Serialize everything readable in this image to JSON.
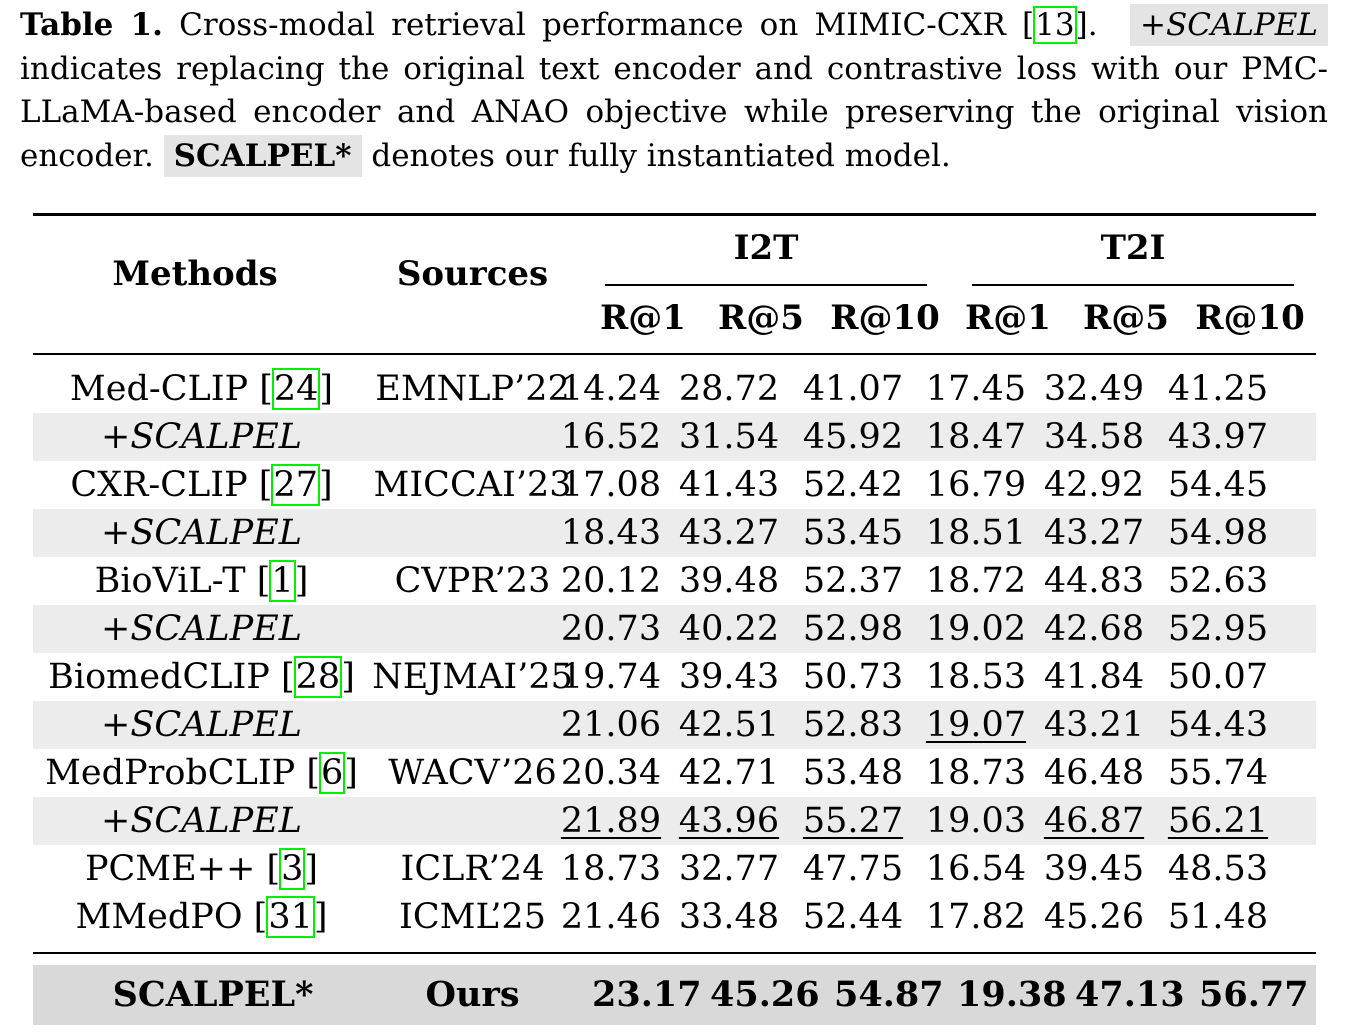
{
  "caption": {
    "label": "Table 1.",
    "text1": " Cross-modal retrieval performance on MIMIC-CXR [",
    "cite": "13",
    "text2": "].",
    "highlight1": "+SCALPEL",
    "text3": " indicates replacing the original text encoder and contrastive loss with our PMC-LLaMA-based encoder and ANAO objective while preserving the original vision encoder.",
    "highlight2": "SCALPEL*",
    "text4": " denotes our fully instantiated model."
  },
  "headers": {
    "methods": "Methods",
    "sources": "Sources",
    "group_i2t": "I2T",
    "group_t2i": "T2I",
    "metrics": [
      "R@1",
      "R@5",
      "R@10",
      "R@1",
      "R@5",
      "R@10"
    ]
  },
  "rows": [
    {
      "method": "Med-CLIP [",
      "ref": "24",
      "close": "]",
      "source": "EMNLP’22",
      "values": [
        "14.24",
        "28.72",
        "41.07",
        "17.45",
        "32.49",
        "41.25"
      ],
      "underline": [],
      "shade": false,
      "italic": false
    },
    {
      "method": "+SCALPEL",
      "ref": "",
      "close": "",
      "source": "",
      "values": [
        "16.52",
        "31.54",
        "45.92",
        "18.47",
        "34.58",
        "43.97"
      ],
      "underline": [],
      "shade": true,
      "italic": true
    },
    {
      "method": "CXR-CLIP [",
      "ref": "27",
      "close": "]",
      "source": "MICCAI’23",
      "values": [
        "17.08",
        "41.43",
        "52.42",
        "16.79",
        "42.92",
        "54.45"
      ],
      "underline": [],
      "shade": false,
      "italic": false
    },
    {
      "method": "+SCALPEL",
      "ref": "",
      "close": "",
      "source": "",
      "values": [
        "18.43",
        "43.27",
        "53.45",
        "18.51",
        "43.27",
        "54.98"
      ],
      "underline": [],
      "shade": true,
      "italic": true
    },
    {
      "method": "BioViL-T [",
      "ref": "1",
      "close": "]",
      "source": "CVPR’23",
      "values": [
        "20.12",
        "39.48",
        "52.37",
        "18.72",
        "44.83",
        "52.63"
      ],
      "underline": [],
      "shade": false,
      "italic": false
    },
    {
      "method": "+SCALPEL",
      "ref": "",
      "close": "",
      "source": "",
      "values": [
        "20.73",
        "40.22",
        "52.98",
        "19.02",
        "42.68",
        "52.95"
      ],
      "underline": [],
      "shade": true,
      "italic": true
    },
    {
      "method": "BiomedCLIP [",
      "ref": "28",
      "close": "]",
      "source": "NEJMAI’25",
      "values": [
        "19.74",
        "39.43",
        "50.73",
        "18.53",
        "41.84",
        "50.07"
      ],
      "underline": [],
      "shade": false,
      "italic": false
    },
    {
      "method": "+SCALPEL",
      "ref": "",
      "close": "",
      "source": "",
      "values": [
        "21.06",
        "42.51",
        "52.83",
        "19.07",
        "43.21",
        "54.43"
      ],
      "underline": [
        3
      ],
      "shade": true,
      "italic": true
    },
    {
      "method": "MedProbCLIP [",
      "ref": "6",
      "close": "]",
      "source": "WACV’26",
      "values": [
        "20.34",
        "42.71",
        "53.48",
        "18.73",
        "46.48",
        "55.74"
      ],
      "underline": [],
      "shade": false,
      "italic": false
    },
    {
      "method": "+SCALPEL",
      "ref": "",
      "close": "",
      "source": "",
      "values": [
        "21.89",
        "43.96",
        "55.27",
        "19.03",
        "46.87",
        "56.21"
      ],
      "underline": [
        0,
        1,
        2,
        4,
        5
      ],
      "shade": true,
      "italic": true
    },
    {
      "method": "PCME++ [",
      "ref": "3",
      "close": "]",
      "source": "ICLR’24",
      "values": [
        "18.73",
        "32.77",
        "47.75",
        "16.54",
        "39.45",
        "48.53"
      ],
      "underline": [],
      "shade": false,
      "italic": false
    },
    {
      "method": "MMedPO [",
      "ref": "31",
      "close": "]",
      "source": "ICML’25",
      "values": [
        "21.46",
        "33.48",
        "52.44",
        "17.82",
        "45.26",
        "51.48"
      ],
      "underline": [],
      "shade": false,
      "italic": false
    }
  ],
  "total": {
    "method": "SCALPEL*",
    "source": "Ours",
    "values": [
      "23.17",
      "45.26",
      "54.87",
      "19.38",
      "47.13",
      "56.77"
    ]
  }
}
